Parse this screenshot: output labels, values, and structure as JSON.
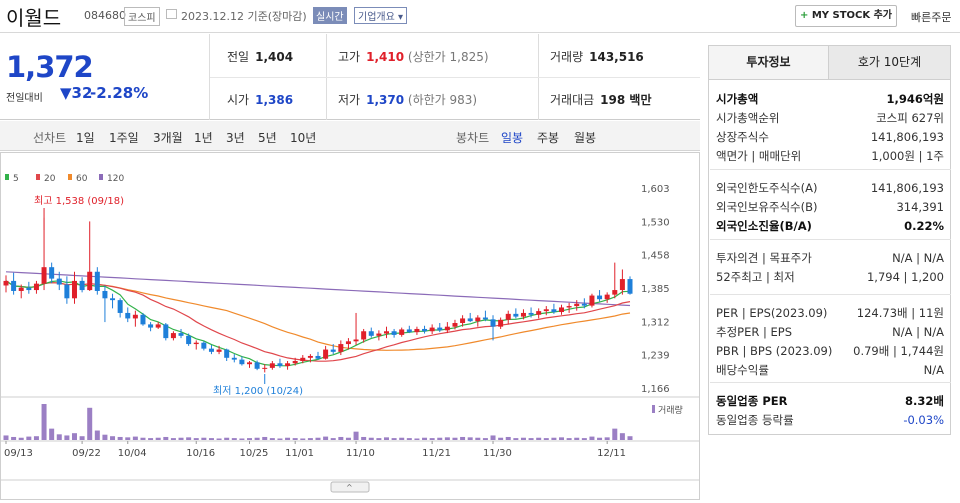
{
  "header": {
    "name": "이월드",
    "code": "084680",
    "market": "코스피",
    "date": "2023.12.12 기준(장마감)",
    "realtime": "실시간",
    "overview": "기업개요 ▾",
    "mystock": "MY STOCK 추가",
    "quick": "빠른주문"
  },
  "quote": {
    "price": "1,372",
    "change_label": "전일대비",
    "change": "▼32",
    "change_pct": "-2.28%",
    "prev_label": "전일",
    "prev": "1,404",
    "open_label": "시가",
    "open": "1,386",
    "high_label": "고가",
    "high": "1,410",
    "high_limit": "(상한가 1,825)",
    "low_label": "저가",
    "low": "1,370",
    "low_limit": "(하한가 983)",
    "vol_label": "거래량",
    "vol": "143,516",
    "amt_label": "거래대금",
    "amt": "198 백만"
  },
  "period": {
    "line_label": "선차트",
    "line_items": [
      "1일",
      "1주일",
      "3개월",
      "1년",
      "3년",
      "5년",
      "10년"
    ],
    "candle_label": "봉차트",
    "candle_items": [
      "일봉",
      "주봉",
      "월봉"
    ]
  },
  "colors": {
    "up": "#e0202a",
    "down": "#1e7fd9",
    "ma5": "#32b24a",
    "ma20": "#e0474c",
    "ma60": "#f08a2c",
    "ma120": "#8b6bb8",
    "vol": "#9b7fc4"
  },
  "chart_data": {
    "type": "candlestick",
    "legend": [
      "5",
      "20",
      "60",
      "120"
    ],
    "y_ticks": [
      "1,603",
      "1,530",
      "1,458",
      "1,385",
      "1,312",
      "1,239",
      "1,166"
    ],
    "ylim": [
      1166,
      1603
    ],
    "x_ticks": [
      "09/13",
      "09/22",
      "10/04",
      "10/16",
      "10/25",
      "11/01",
      "11/10",
      "11/21",
      "11/30",
      "12/11"
    ],
    "high_note": "최고 1,538 (09/18)",
    "low_note": "최저 1,200 (10/24)",
    "volume_label": "거래량",
    "candles": [
      [
        1390,
        1412,
        1375,
        1400
      ],
      [
        1400,
        1418,
        1370,
        1378
      ],
      [
        1378,
        1392,
        1362,
        1385
      ],
      [
        1385,
        1398,
        1372,
        1380
      ],
      [
        1380,
        1400,
        1372,
        1394
      ],
      [
        1394,
        1538,
        1380,
        1430
      ],
      [
        1430,
        1440,
        1395,
        1405
      ],
      [
        1405,
        1420,
        1380,
        1392
      ],
      [
        1392,
        1410,
        1350,
        1362
      ],
      [
        1362,
        1420,
        1350,
        1400
      ],
      [
        1400,
        1408,
        1375,
        1380
      ],
      [
        1380,
        1530,
        1378,
        1420
      ],
      [
        1420,
        1430,
        1370,
        1378
      ],
      [
        1378,
        1390,
        1310,
        1362
      ],
      [
        1362,
        1372,
        1340,
        1358
      ],
      [
        1358,
        1362,
        1320,
        1330
      ],
      [
        1330,
        1342,
        1310,
        1318
      ],
      [
        1318,
        1335,
        1300,
        1326
      ],
      [
        1326,
        1330,
        1302,
        1305
      ],
      [
        1305,
        1310,
        1290,
        1298
      ],
      [
        1298,
        1310,
        1295,
        1305
      ],
      [
        1305,
        1308,
        1270,
        1275
      ],
      [
        1275,
        1290,
        1270,
        1286
      ],
      [
        1286,
        1295,
        1275,
        1280
      ],
      [
        1280,
        1285,
        1258,
        1262
      ],
      [
        1262,
        1270,
        1250,
        1265
      ],
      [
        1265,
        1268,
        1248,
        1252
      ],
      [
        1252,
        1260,
        1240,
        1245
      ],
      [
        1245,
        1258,
        1240,
        1250
      ],
      [
        1250,
        1252,
        1225,
        1232
      ],
      [
        1232,
        1240,
        1222,
        1228
      ],
      [
        1228,
        1235,
        1215,
        1218
      ],
      [
        1218,
        1225,
        1210,
        1222
      ],
      [
        1222,
        1226,
        1205,
        1208
      ],
      [
        1208,
        1218,
        1200,
        1210
      ],
      [
        1210,
        1225,
        1206,
        1220
      ],
      [
        1220,
        1230,
        1210,
        1214
      ],
      [
        1214,
        1225,
        1206,
        1220
      ],
      [
        1220,
        1232,
        1215,
        1225
      ],
      [
        1225,
        1238,
        1220,
        1232
      ],
      [
        1232,
        1240,
        1222,
        1236
      ],
      [
        1236,
        1245,
        1228,
        1230
      ],
      [
        1230,
        1258,
        1228,
        1250
      ],
      [
        1250,
        1262,
        1240,
        1245
      ],
      [
        1245,
        1270,
        1238,
        1262
      ],
      [
        1262,
        1275,
        1250,
        1268
      ],
      [
        1268,
        1330,
        1260,
        1272
      ],
      [
        1272,
        1295,
        1265,
        1290
      ],
      [
        1290,
        1298,
        1276,
        1280
      ],
      [
        1280,
        1292,
        1270,
        1285
      ],
      [
        1285,
        1300,
        1275,
        1290
      ],
      [
        1290,
        1295,
        1276,
        1282
      ],
      [
        1282,
        1298,
        1278,
        1294
      ],
      [
        1294,
        1302,
        1286,
        1288
      ],
      [
        1288,
        1300,
        1282,
        1295
      ],
      [
        1295,
        1302,
        1285,
        1290
      ],
      [
        1290,
        1305,
        1284,
        1298
      ],
      [
        1298,
        1308,
        1288,
        1292
      ],
      [
        1292,
        1310,
        1286,
        1300
      ],
      [
        1300,
        1315,
        1294,
        1308
      ],
      [
        1308,
        1325,
        1300,
        1318
      ],
      [
        1318,
        1330,
        1310,
        1312
      ],
      [
        1312,
        1325,
        1300,
        1320
      ],
      [
        1320,
        1335,
        1312,
        1316
      ],
      [
        1316,
        1325,
        1270,
        1300
      ],
      [
        1300,
        1320,
        1295,
        1315
      ],
      [
        1315,
        1335,
        1305,
        1328
      ],
      [
        1328,
        1340,
        1318,
        1322
      ],
      [
        1322,
        1338,
        1316,
        1330
      ],
      [
        1330,
        1342,
        1320,
        1326
      ],
      [
        1326,
        1340,
        1318,
        1334
      ],
      [
        1334,
        1345,
        1325,
        1338
      ],
      [
        1338,
        1350,
        1328,
        1332
      ],
      [
        1332,
        1348,
        1326,
        1342
      ],
      [
        1342,
        1352,
        1330,
        1345
      ],
      [
        1345,
        1358,
        1335,
        1350
      ],
      [
        1350,
        1362,
        1340,
        1346
      ],
      [
        1346,
        1372,
        1342,
        1368
      ],
      [
        1368,
        1380,
        1355,
        1360
      ],
      [
        1360,
        1375,
        1352,
        1370
      ],
      [
        1370,
        1440,
        1362,
        1380
      ],
      [
        1380,
        1425,
        1370,
        1404
      ],
      [
        1404,
        1410,
        1370,
        1372
      ]
    ],
    "volumes": [
      12,
      8,
      6,
      9,
      10,
      95,
      30,
      15,
      12,
      18,
      10,
      85,
      25,
      14,
      10,
      8,
      7,
      9,
      6,
      5,
      6,
      8,
      5,
      6,
      7,
      5,
      6,
      5,
      4,
      6,
      5,
      4,
      5,
      6,
      8,
      5,
      4,
      6,
      5,
      4,
      5,
      6,
      9,
      5,
      8,
      6,
      22,
      8,
      6,
      5,
      7,
      5,
      6,
      5,
      4,
      6,
      5,
      6,
      7,
      6,
      8,
      7,
      6,
      5,
      12,
      6,
      8,
      5,
      6,
      5,
      6,
      5,
      6,
      7,
      5,
      6,
      5,
      9,
      6,
      7,
      30,
      18,
      10
    ]
  },
  "side": {
    "tab1": "투자정보",
    "tab2": "호가 10단계",
    "rows": [
      {
        "k": "시가총액",
        "v": "1,946억원",
        "bold": true
      },
      {
        "k": "시가총액순위",
        "v": "코스피 627위"
      },
      {
        "k": "상장주식수",
        "v": "141,806,193"
      },
      {
        "k": "액면가 | 매매단위",
        "v": "1,000원 | 1주"
      },
      {
        "k": "외국인한도주식수(A)",
        "v": "141,806,193"
      },
      {
        "k": "외국인보유주식수(B)",
        "v": "314,391"
      },
      {
        "k": "외국인소진율(B/A)",
        "v": "0.22%",
        "bold": true
      },
      {
        "k": "투자의견 | 목표주가",
        "v": "N/A | N/A"
      },
      {
        "k": "52주최고 | 최저",
        "v": "1,794 | 1,200"
      },
      {
        "k": "PER | EPS(2023.09)",
        "v": "124.73배 | 11원"
      },
      {
        "k": "추정PER | EPS",
        "v": "N/A | N/A"
      },
      {
        "k": "PBR | BPS (2023.09)",
        "v": "0.79배 | 1,744원"
      },
      {
        "k": "배당수익률",
        "v": "N/A"
      },
      {
        "k": "동일업종 PER",
        "v": "8.32배",
        "bold": true
      },
      {
        "k": "동일업종 등락률",
        "v": "-0.03%",
        "blue": true
      }
    ]
  }
}
